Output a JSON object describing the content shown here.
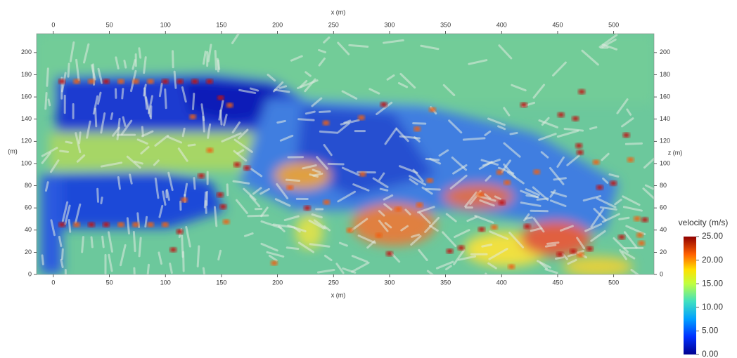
{
  "chart_data": {
    "type": "field",
    "xlabel_top": "x (m)",
    "xlabel_bottom": "x (m)",
    "ylabel_left": "(m)",
    "ylabel_right": "z (m)",
    "xlim": [
      -15,
      536
    ],
    "xticks": [
      0,
      50,
      100,
      150,
      200,
      250,
      300,
      350,
      400,
      450,
      500
    ],
    "ylim": [
      0,
      217
    ],
    "yticks": [
      0,
      20,
      40,
      60,
      80,
      100,
      120,
      140,
      160,
      180,
      200
    ],
    "colorbar": {
      "title": "velocity (m/s)",
      "lim": [
        0,
        25
      ],
      "ticks": [
        {
          "value": 25,
          "label": "25.00"
        },
        {
          "value": 20,
          "label": "20.00"
        },
        {
          "value": 15,
          "label": "15.00"
        },
        {
          "value": 10,
          "label": "10.00"
        },
        {
          "value": 5,
          "label": "5.00"
        },
        {
          "value": 0,
          "label": "0.00"
        }
      ]
    }
  }
}
